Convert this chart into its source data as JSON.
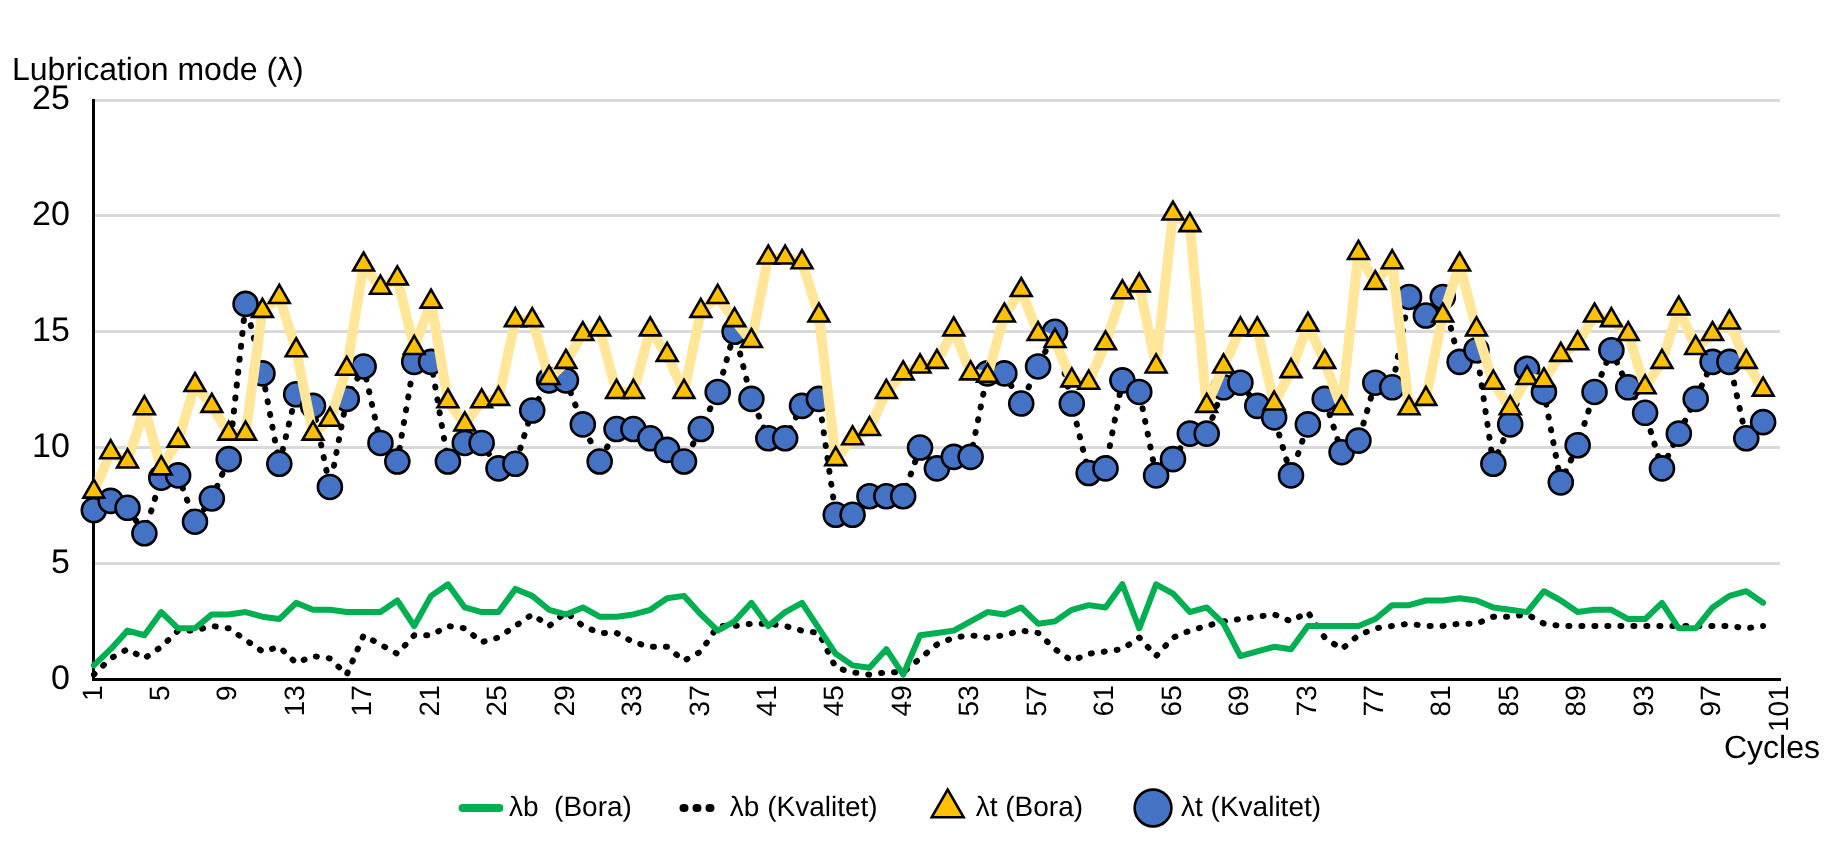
{
  "chart_data": {
    "type": "line",
    "ylabel": "Lubrication mode (λ)",
    "xlabel": "Cycles",
    "categories": [
      "1",
      null,
      null,
      null,
      "5",
      null,
      null,
      null,
      "9",
      null,
      null,
      null,
      "13",
      null,
      null,
      null,
      "17",
      null,
      null,
      null,
      "21",
      null,
      null,
      null,
      "25",
      null,
      null,
      null,
      "29",
      null,
      null,
      null,
      "33",
      null,
      null,
      null,
      "37",
      null,
      null,
      null,
      "41",
      null,
      null,
      null,
      "45",
      null,
      null,
      null,
      "49",
      null,
      null,
      null,
      "53",
      null,
      null,
      null,
      "57",
      null,
      null,
      null,
      "61",
      null,
      null,
      null,
      "65",
      null,
      null,
      null,
      "69",
      null,
      null,
      null,
      "73",
      null,
      null,
      null,
      "77",
      null,
      null,
      null,
      "81",
      null,
      null,
      null,
      "85",
      null,
      null,
      null,
      "89",
      null,
      null,
      null,
      "93",
      null,
      null,
      null,
      "97",
      null,
      null,
      null,
      "101"
    ],
    "ylim": [
      0,
      25
    ],
    "yticks": [
      0,
      5,
      10,
      15,
      20,
      25
    ],
    "grid": "y",
    "legend": "bottom",
    "series": [
      {
        "name": "λb  (Bora)",
        "color": "#00b050",
        "marker": "none",
        "line_style": "solid",
        "values": [
          0.6,
          1.3,
          2.1,
          1.9,
          2.9,
          2.2,
          2.2,
          2.8,
          2.8,
          2.9,
          2.7,
          2.6,
          3.3,
          3.0,
          3.0,
          2.9,
          2.9,
          2.9,
          3.4,
          2.3,
          3.6,
          4.1,
          3.1,
          2.9,
          2.9,
          3.9,
          3.6,
          3.0,
          2.8,
          3.1,
          2.7,
          2.7,
          2.8,
          3.0,
          3.5,
          3.6,
          2.8,
          2.1,
          2.5,
          3.3,
          2.3,
          2.9,
          3.3,
          2.2,
          1.1,
          0.6,
          0.5,
          1.3,
          0.2,
          1.9,
          2.0,
          2.1,
          2.5,
          2.9,
          2.8,
          3.1,
          2.4,
          2.5,
          3.0,
          3.2,
          3.1,
          4.1,
          2.2,
          4.1,
          3.7,
          2.9,
          3.1,
          2.4,
          1.0,
          1.2,
          1.4,
          1.3,
          2.3,
          2.3,
          2.3,
          2.3,
          2.6,
          3.2,
          3.2,
          3.4,
          3.4,
          3.5,
          3.4,
          3.1,
          3.0,
          2.9,
          3.8,
          3.4,
          2.9,
          3.0,
          3.0,
          2.6,
          2.6,
          3.3,
          2.2,
          2.2,
          3.1,
          3.6,
          3.8,
          3.3,
          null
        ]
      },
      {
        "name": "λb (Kvalitet)",
        "color": "#000000",
        "marker": "none",
        "line_style": "dotted",
        "values": [
          0.2,
          0.9,
          1.3,
          0.9,
          1.4,
          2.1,
          2.1,
          2.3,
          2.2,
          1.7,
          1.2,
          1.4,
          0.7,
          1.0,
          0.9,
          0.2,
          1.9,
          1.5,
          1.1,
          1.9,
          1.9,
          2.3,
          2.2,
          1.6,
          1.8,
          2.3,
          2.8,
          2.3,
          2.9,
          2.3,
          2.0,
          2.0,
          1.6,
          1.4,
          1.4,
          0.8,
          1.2,
          2.3,
          2.3,
          2.4,
          2.4,
          2.3,
          2.1,
          2.0,
          0.5,
          0.3,
          0.2,
          0.3,
          0.3,
          0.9,
          1.5,
          1.8,
          1.9,
          1.8,
          1.9,
          2.1,
          2.0,
          1.3,
          0.8,
          1.1,
          1.2,
          1.3,
          1.8,
          1.0,
          1.8,
          2.1,
          2.3,
          2.5,
          2.6,
          2.7,
          2.8,
          2.5,
          2.9,
          1.8,
          1.3,
          1.9,
          2.2,
          2.3,
          2.4,
          2.3,
          2.3,
          2.4,
          2.4,
          2.7,
          2.7,
          2.8,
          2.4,
          2.3,
          2.3,
          2.3,
          2.3,
          2.3,
          2.3,
          2.3,
          2.3,
          2.3,
          2.3,
          2.3,
          2.2,
          2.3,
          null
        ]
      },
      {
        "name": "λt (Bora)",
        "color": "#ffe699",
        "colors": [
          "#ffc000",
          "#ffc000",
          "#ffc000",
          "#ffc000",
          "#ffc000",
          "#ffc000",
          "#ffc000",
          "#ffc000",
          "#ffc000",
          "#ffc000",
          "#ffc000",
          "#ffc000",
          "#ffc000",
          "#ffc000",
          "#ffc000",
          "#ffc000",
          "#ffc000",
          "#ffc000",
          "#ffc000",
          "#ffc000",
          "#ffc000",
          "#ffc000",
          "#ffc000",
          "#ffc000",
          "#ffc000",
          "#ffc000",
          "#ffc000",
          "#ffc000",
          "#ffc000",
          "#ffc000",
          "#ffc000",
          "#ffc000",
          "#ffc000",
          "#ffc000",
          "#ffc000",
          "#ffc000",
          "#ffc000",
          "#ffc000",
          "#ffc000",
          "#ffc000",
          "#ffc000",
          "#ffc000",
          "#ffc000",
          "#ffc000",
          "#ffc000",
          "#ffc000",
          "#ffc000",
          "#ffc000",
          "#ffc000",
          "#ffc000",
          "#ffc000",
          "#ffc000",
          "#ffc000",
          "#ffc000",
          "#ffc000",
          "#ffc000",
          "#ffc000",
          "#ffc000",
          "#ffc000",
          "#ffc000",
          "#ffc000",
          "#ffc000",
          "#ffc000",
          "#ffc000",
          "#ffc000",
          "#ffc000",
          "#ffc000",
          "#ffc000",
          "#ffc000",
          "#ffc000",
          "#ffc000",
          "#ffc000",
          "#ffc000",
          "#ffc000",
          "#ffc000",
          "#ffc000",
          "#ffc000",
          "#ffc000",
          "#ffc000",
          "#ffc000",
          "#ffc000",
          "#ffc000",
          "#ffc000",
          "#ffc000",
          "#ffc000",
          "#ffc000",
          "#ffc000",
          "#ffc000",
          "#ffc000",
          "#ffc000",
          "#ffc000",
          "#ffc000",
          "#ffc000",
          "#ffc000",
          "#ffc000",
          "#ffc000",
          "#ffc000",
          "#ffc000",
          "#ffc000",
          "#ffc000",
          "#ffc000"
        ],
        "marker": "triangle",
        "line_style": "solid",
        "values": [
          8.1,
          9.8,
          9.4,
          11.7,
          9.1,
          10.3,
          12.7,
          11.8,
          10.6,
          10.6,
          15.9,
          16.5,
          14.2,
          10.6,
          11.2,
          13.4,
          17.9,
          16.9,
          17.3,
          14.3,
          16.3,
          12.0,
          11.0,
          12.0,
          12.1,
          15.5,
          15.5,
          13.0,
          13.7,
          14.9,
          15.1,
          12.4,
          12.4,
          15.1,
          14.0,
          12.4,
          15.9,
          16.5,
          15.5,
          14.6,
          18.2,
          18.2,
          18.0,
          15.7,
          9.5,
          10.4,
          10.8,
          12.4,
          13.2,
          13.5,
          13.7,
          15.1,
          13.2,
          13.1,
          15.7,
          16.8,
          14.9,
          14.6,
          12.9,
          12.8,
          14.5,
          16.7,
          17.0,
          13.5,
          20.1,
          19.6,
          11.8,
          13.5,
          15.1,
          15.1,
          11.9,
          13.3,
          15.3,
          13.7,
          11.7,
          18.4,
          17.1,
          18.0,
          11.7,
          12.1,
          15.7,
          17.9,
          15.1,
          12.8,
          11.7,
          13.0,
          12.9,
          14.0,
          14.5,
          15.7,
          15.5,
          14.9,
          12.6,
          13.7,
          16.0,
          14.3,
          14.9,
          15.4,
          13.7,
          12.5,
          null
        ]
      },
      {
        "name": "λt (Kvalitet)",
        "color": "#000000",
        "colors": [
          "#4472c4",
          "#4472c4",
          "#4472c4",
          "#4472c4",
          "#4472c4",
          "#4472c4",
          "#4472c4",
          "#4472c4",
          "#4472c4",
          "#4472c4",
          "#4472c4",
          "#4472c4",
          "#4472c4",
          "#4472c4",
          "#4472c4",
          "#4472c4",
          "#4472c4",
          "#4472c4",
          "#4472c4",
          "#4472c4",
          "#4472c4",
          "#4472c4",
          "#4472c4",
          "#4472c4",
          "#4472c4",
          "#4472c4",
          "#4472c4",
          "#4472c4",
          "#4472c4",
          "#4472c4",
          "#4472c4",
          "#4472c4",
          "#4472c4",
          "#4472c4",
          "#4472c4",
          "#4472c4",
          "#4472c4",
          "#4472c4",
          "#4472c4",
          "#4472c4",
          "#4472c4",
          "#4472c4",
          "#4472c4",
          "#4472c4",
          "#4472c4",
          "#4472c4",
          "#4472c4",
          "#4472c4",
          "#4472c4",
          "#4472c4",
          "#4472c4",
          "#4472c4",
          "#4472c4",
          "#4472c4",
          "#4472c4",
          "#4472c4",
          "#4472c4",
          "#4472c4",
          "#4472c4",
          "#4472c4",
          "#4472c4",
          "#4472c4",
          "#4472c4",
          "#4472c4",
          "#4472c4",
          "#4472c4",
          "#4472c4",
          "#4472c4",
          "#4472c4",
          "#4472c4",
          "#4472c4",
          "#4472c4",
          "#4472c4",
          "#4472c4",
          "#4472c4",
          "#4472c4",
          "#4472c4",
          "#4472c4",
          "#4472c4",
          "#4472c4",
          "#4472c4",
          "#4472c4",
          "#4472c4",
          "#4472c4",
          "#4472c4",
          "#4472c4",
          "#4472c4",
          "#4472c4",
          "#4472c4",
          "#4472c4",
          "#4472c4",
          "#4472c4",
          "#4472c4",
          "#4472c4",
          "#4472c4",
          "#4472c4",
          "#4472c4",
          "#4472c4",
          "#4472c4",
          "#4472c4",
          "#4472c4"
        ],
        "marker": "circle",
        "line_style": "dotted",
        "values": [
          7.3,
          7.7,
          7.4,
          6.3,
          8.7,
          8.8,
          6.8,
          7.8,
          9.5,
          16.2,
          13.2,
          9.3,
          12.3,
          11.8,
          8.3,
          12.1,
          13.5,
          10.2,
          9.4,
          13.7,
          13.7,
          9.4,
          10.2,
          10.2,
          9.1,
          9.3,
          11.6,
          12.9,
          12.9,
          11.0,
          9.4,
          10.8,
          10.8,
          10.4,
          9.9,
          9.4,
          10.8,
          12.4,
          15.0,
          12.1,
          10.4,
          10.4,
          11.8,
          12.1,
          7.1,
          7.1,
          7.9,
          7.9,
          7.9,
          10.0,
          9.1,
          9.6,
          9.6,
          13.2,
          13.2,
          11.9,
          13.5,
          15.0,
          11.9,
          8.9,
          9.1,
          12.9,
          12.4,
          8.8,
          9.5,
          10.6,
          10.6,
          12.6,
          12.8,
          11.8,
          11.3,
          8.8,
          11.0,
          12.1,
          9.8,
          10.3,
          12.8,
          12.6,
          16.5,
          15.7,
          16.5,
          13.7,
          14.2,
          9.3,
          11.0,
          13.4,
          12.4,
          8.5,
          10.1,
          12.4,
          14.2,
          12.6,
          11.5,
          9.1,
          10.6,
          12.1,
          13.7,
          13.7,
          10.4,
          11.1,
          null
        ]
      }
    ]
  }
}
